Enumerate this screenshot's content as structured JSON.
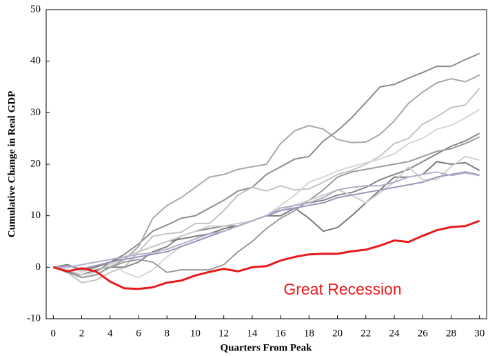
{
  "chart_data": {
    "type": "line",
    "x_label": "Quarters From Peak",
    "y_label": "Cumulative Change in Real GDP",
    "annotation": "Great Recession",
    "x": [
      0,
      1,
      2,
      3,
      4,
      5,
      6,
      7,
      8,
      9,
      10,
      11,
      12,
      13,
      14,
      15,
      16,
      17,
      18,
      19,
      20,
      21,
      22,
      23,
      24,
      25,
      26,
      27,
      28,
      29,
      30
    ],
    "xlim": [
      -0.5,
      30.5
    ],
    "xticks": [
      0,
      2,
      4,
      6,
      8,
      10,
      12,
      14,
      16,
      18,
      20,
      22,
      24,
      26,
      28,
      30
    ],
    "ylim": [
      -10,
      50
    ],
    "yticks": [
      -10,
      0,
      10,
      20,
      30,
      40,
      50
    ],
    "series": [
      {
        "color": "#8c8c8c",
        "values": [
          0,
          -0.5,
          -1.5,
          -1,
          1,
          2.5,
          4.5,
          7,
          8.2,
          9.5,
          10,
          11.5,
          13,
          14.8,
          15.5,
          18,
          19.5,
          21,
          21.5,
          24.5,
          26.5,
          29,
          32,
          35,
          35.5,
          36.7,
          37.8,
          39,
          39,
          40.3,
          41.5
        ]
      },
      {
        "color": "#a8a8a8",
        "values": [
          0,
          -1,
          -2,
          -1.5,
          0,
          1.5,
          4,
          9.5,
          12,
          13.5,
          15.5,
          17.5,
          18,
          19,
          19.5,
          20,
          24,
          26.5,
          27.5,
          26.8,
          24.8,
          24.2,
          24.3,
          25.8,
          28.4,
          31.8,
          34,
          35.8,
          36.6,
          36,
          37.3
        ]
      },
      {
        "color": "#c4c4c4",
        "values": [
          0,
          -1,
          -3,
          -2.5,
          -1,
          0,
          3,
          6,
          6.5,
          6.8,
          8.5,
          8.5,
          11,
          14,
          15.5,
          14.8,
          15.8,
          15,
          15.2,
          16.5,
          18,
          18.8,
          20,
          21.6,
          24,
          25,
          27.8,
          29.2,
          31,
          31.5,
          34.7
        ]
      },
      {
        "color": "#d6d6d6",
        "values": [
          0,
          0.5,
          -1,
          0,
          1,
          -1,
          -2,
          -0.5,
          2,
          4,
          5,
          6,
          7,
          8,
          9,
          10,
          12,
          14,
          16.5,
          17.5,
          18.7,
          19.5,
          20.3,
          21,
          22,
          24,
          25,
          26.8,
          27.5,
          29,
          30.6
        ]
      },
      {
        "color": "#858585",
        "values": [
          0,
          -1,
          -1.5,
          -0.5,
          0,
          0,
          1,
          3,
          4,
          6,
          7,
          7.5,
          8,
          8,
          9,
          10,
          11,
          12,
          12.5,
          13,
          14,
          14.5,
          15.5,
          17,
          18,
          19,
          20.5,
          22,
          23.5,
          24.5,
          26
        ]
      },
      {
        "color": "#7a7a7a",
        "values": [
          0,
          0.5,
          -0.5,
          0,
          1,
          2,
          3,
          4,
          5,
          5.5,
          6,
          6.5,
          7.5,
          8,
          9,
          10,
          10,
          11.5,
          9.5,
          7,
          7.7,
          10,
          12.5,
          15,
          17.5,
          17.5,
          18,
          20.5,
          20,
          20.3,
          18.8
        ]
      },
      {
        "color": "#9a9a9a",
        "values": [
          0,
          -0.5,
          -2,
          -1.5,
          0,
          1,
          1.5,
          1,
          -1,
          -0.5,
          -0.5,
          -0.5,
          0.5,
          3,
          5,
          7.5,
          9.5,
          11,
          13,
          15,
          17.5,
          18.5,
          19,
          19.5,
          20,
          20.5,
          21.5,
          22.5,
          23,
          24,
          25.3
        ]
      },
      {
        "color": "#d0d0d0",
        "values": [
          0,
          -0.5,
          -1.5,
          -1,
          0.5,
          2,
          3,
          4,
          5,
          6,
          7,
          8,
          8,
          8.5,
          9,
          10,
          11,
          12,
          13,
          14,
          15,
          14,
          12.5,
          14.5,
          16.5,
          19.5,
          17,
          17,
          19.5,
          21.5,
          20.8
        ]
      },
      {
        "color": "#9c95ba",
        "values": [
          0,
          0.3,
          -0.3,
          0.3,
          1,
          1.5,
          2,
          2.5,
          3,
          4,
          5,
          6,
          7,
          8,
          9,
          10,
          11,
          11.5,
          12,
          12.5,
          13.5,
          14,
          14.5,
          15,
          15.5,
          16,
          16.5,
          17.5,
          18,
          18.5,
          17.9
        ]
      },
      {
        "color": "#b3aecb",
        "values": [
          0,
          0,
          0.5,
          1,
          1.5,
          2,
          2.5,
          2.8,
          3.5,
          4.5,
          5.5,
          6.5,
          7,
          8,
          9,
          10,
          11.5,
          12,
          12.5,
          13.5,
          15,
          15.5,
          15.8,
          15.8,
          16.5,
          17.5,
          18,
          18.5,
          17.8,
          18.3,
          17.8
        ]
      },
      {
        "color": "#e8191b",
        "values": [
          0,
          -0.8,
          -0.2,
          -0.8,
          -2.8,
          -4.1,
          -4.2,
          -3.9,
          -3.0,
          -2.6,
          -1.6,
          -0.9,
          -0.3,
          -0.8,
          0,
          0.2,
          1.3,
          2.0,
          2.5,
          2.6,
          2.6,
          3.1,
          3.4,
          4.2,
          5.2,
          4.9,
          6.1,
          7.2,
          7.8,
          8.0,
          9.0
        ]
      }
    ]
  }
}
